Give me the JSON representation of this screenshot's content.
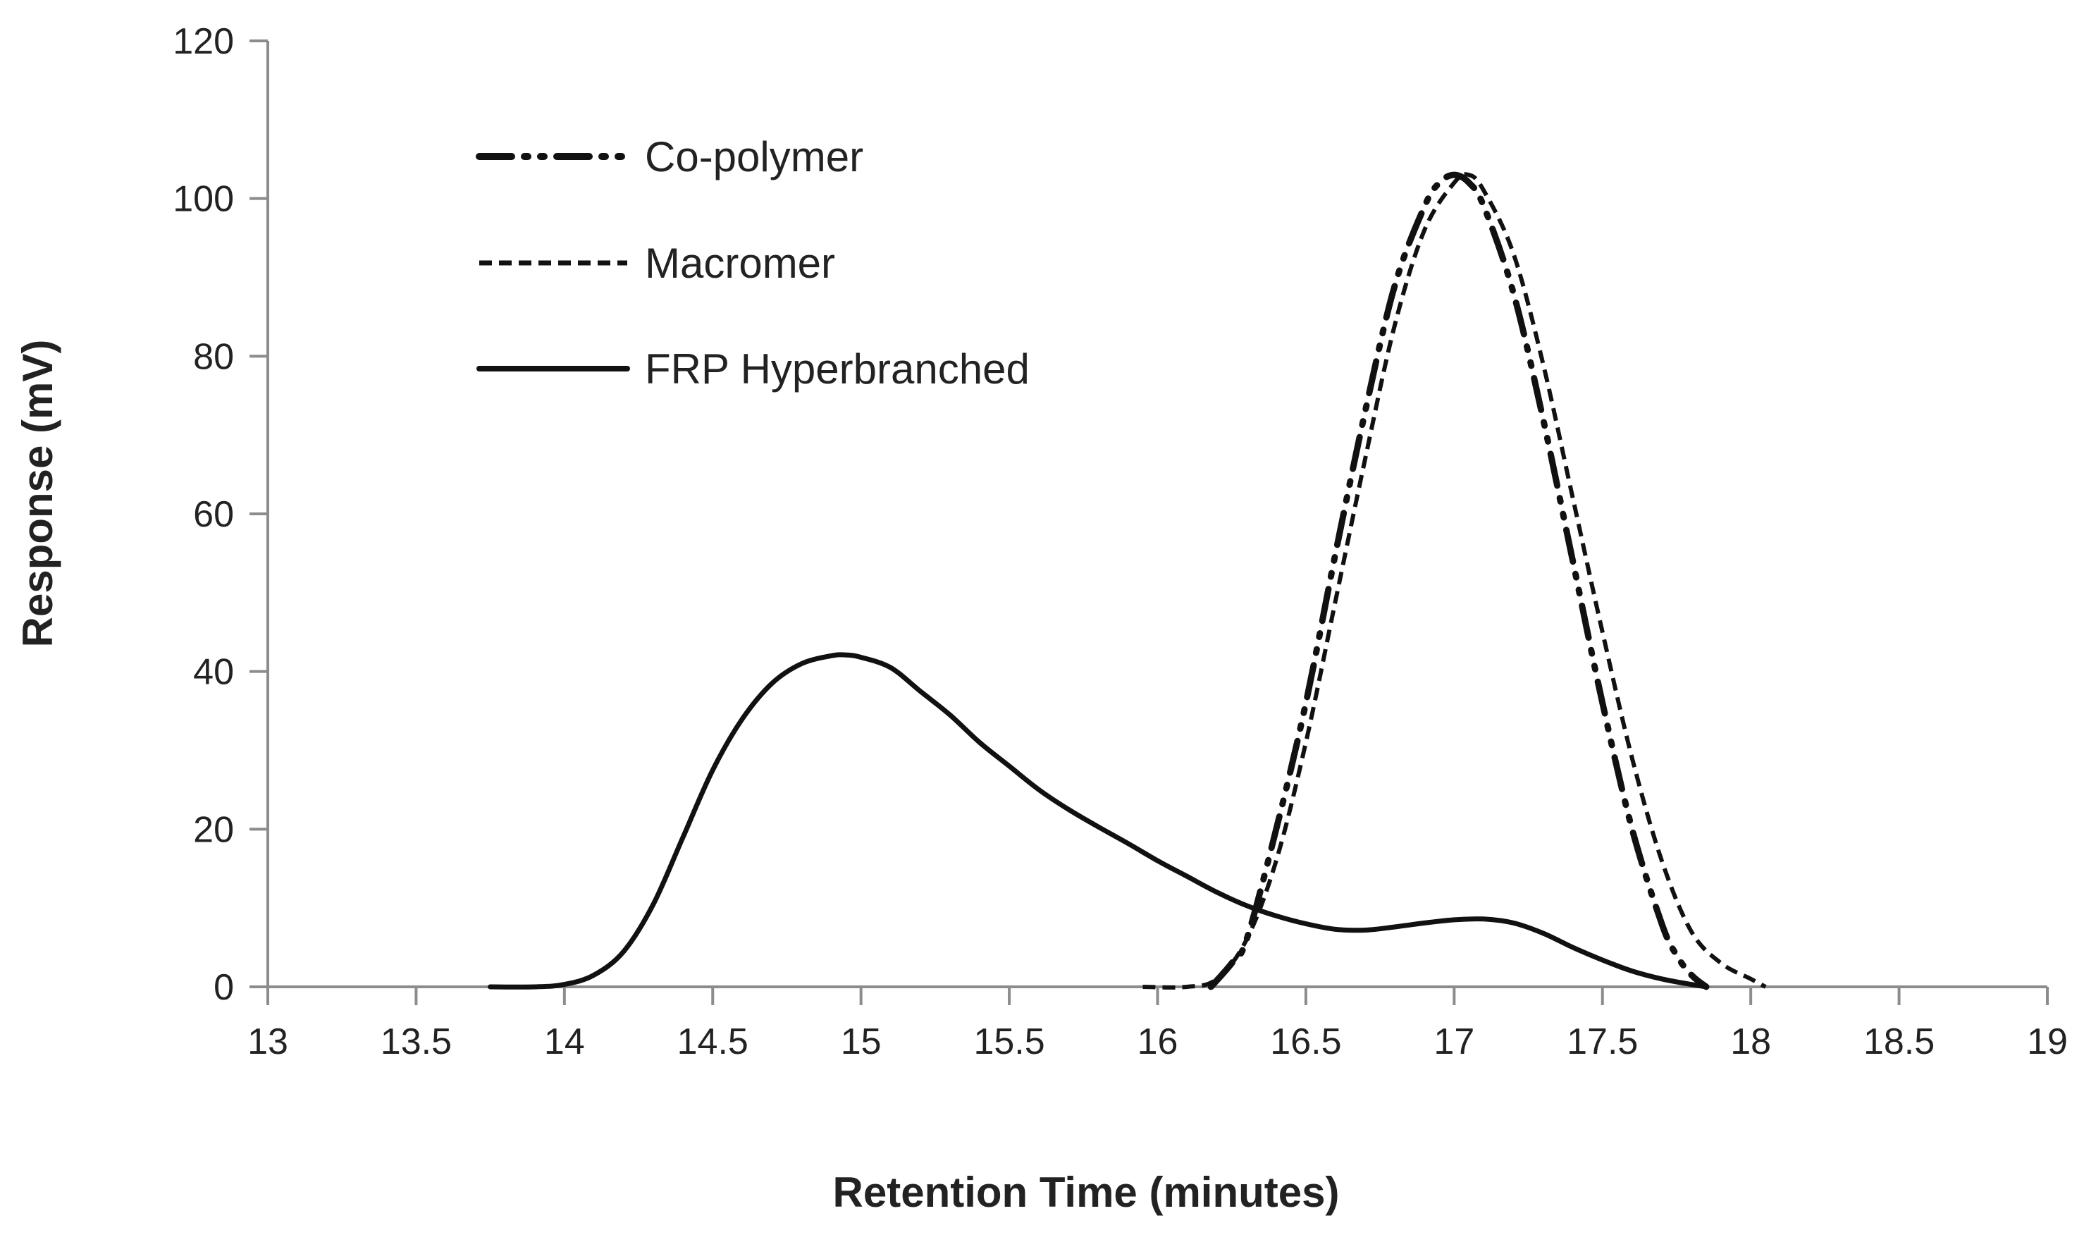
{
  "chart_data": {
    "type": "line",
    "title": "",
    "xlabel": "Retention Time (minutes)",
    "ylabel": "Response (mV)",
    "xlim": [
      13,
      19
    ],
    "ylim": [
      0,
      120
    ],
    "x_ticks": [
      13,
      13.5,
      14,
      14.5,
      15,
      15.5,
      16,
      16.5,
      17,
      17.5,
      18,
      18.5,
      19
    ],
    "x_tick_labels": [
      "13",
      "13.5",
      "14",
      "14.5",
      "15",
      "15.5",
      "16",
      "16.5",
      "17",
      "17.5",
      "18",
      "18.5",
      "19"
    ],
    "y_ticks": [
      0,
      20,
      40,
      60,
      80,
      100,
      120
    ],
    "y_tick_labels": [
      "0",
      "20",
      "40",
      "60",
      "80",
      "100",
      "120"
    ],
    "grid": false,
    "legend_position": "top-left",
    "colors": {
      "line": "#111111",
      "axis": "#8c8c8c",
      "text": "#222222"
    },
    "series": [
      {
        "name": "Co-polymer",
        "style": "dash-dot-dot",
        "x": [
          16.18,
          16.25,
          16.3,
          16.4,
          16.5,
          16.6,
          16.7,
          16.8,
          16.9,
          16.95,
          17.0,
          17.05,
          17.1,
          17.2,
          17.3,
          17.4,
          17.5,
          17.6,
          17.7,
          17.75,
          17.8,
          17.85
        ],
        "y": [
          0,
          3,
          6,
          20,
          36,
          55,
          73,
          89,
          99,
          102,
          103,
          102,
          99,
          88,
          72,
          54,
          36,
          20,
          8,
          4,
          1.5,
          0
        ]
      },
      {
        "name": "Macromer",
        "style": "dashed",
        "x": [
          15.95,
          16.1,
          16.2,
          16.3,
          16.4,
          16.5,
          16.6,
          16.7,
          16.8,
          16.9,
          17.0,
          17.05,
          17.1,
          17.2,
          17.3,
          17.4,
          17.5,
          17.6,
          17.7,
          17.8,
          17.9,
          18.0,
          18.05
        ],
        "y": [
          0,
          0,
          1,
          6,
          16,
          31,
          49,
          67,
          84,
          96,
          102,
          103,
          101,
          93,
          79,
          62,
          45,
          29,
          16,
          7,
          3,
          1,
          0
        ]
      },
      {
        "name": "FRP Hyperbranched",
        "style": "solid",
        "x": [
          13.75,
          13.9,
          14.0,
          14.1,
          14.2,
          14.3,
          14.4,
          14.5,
          14.6,
          14.7,
          14.8,
          14.9,
          14.95,
          15.0,
          15.1,
          15.2,
          15.3,
          15.4,
          15.5,
          15.6,
          15.7,
          15.8,
          15.9,
          16.0,
          16.1,
          16.2,
          16.3,
          16.4,
          16.5,
          16.6,
          16.7,
          16.8,
          16.9,
          17.0,
          17.1,
          17.2,
          17.3,
          17.4,
          17.5,
          17.6,
          17.7,
          17.8,
          17.85
        ],
        "y": [
          0,
          0,
          0.3,
          1.5,
          4.5,
          10.5,
          19,
          27.5,
          34,
          38.5,
          41,
          42,
          42.1,
          41.8,
          40.5,
          37.5,
          34.5,
          31,
          28,
          25,
          22.5,
          20.3,
          18.2,
          16,
          14,
          12,
          10.3,
          9,
          8,
          7.3,
          7.2,
          7.6,
          8.1,
          8.5,
          8.6,
          8.1,
          6.8,
          5,
          3.4,
          2,
          1,
          0.3,
          0
        ]
      }
    ]
  }
}
